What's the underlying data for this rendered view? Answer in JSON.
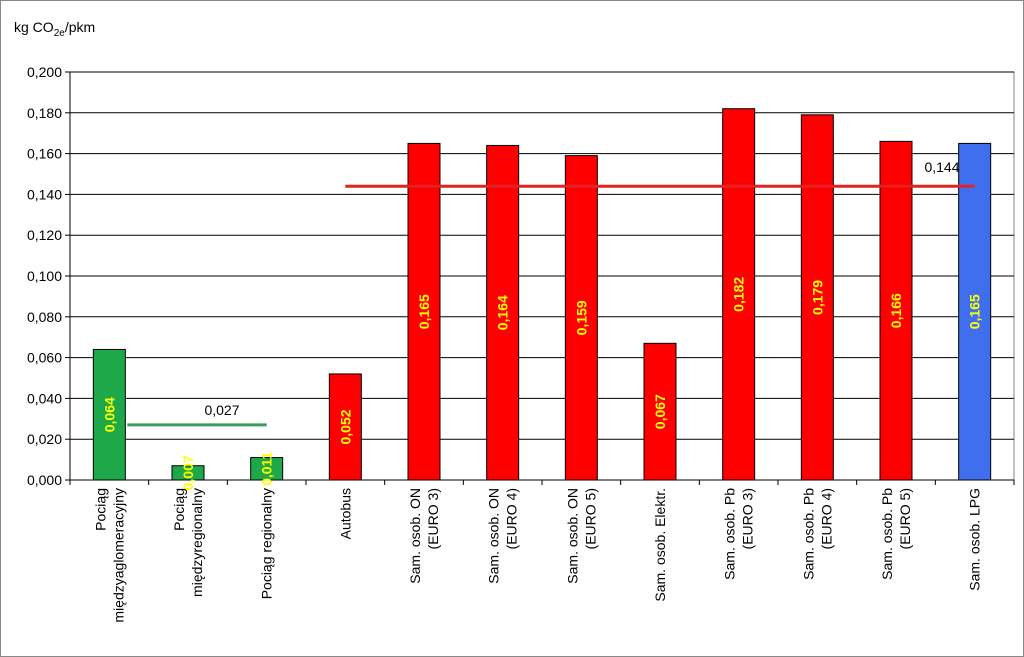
{
  "chart_data": {
    "type": "bar",
    "ylabel": {
      "main": "kg CO",
      "sub": "2e",
      "tail": "/pkm"
    },
    "categories": [
      [
        "Pociąg",
        "międzyaglomeracyjny"
      ],
      [
        "Pociąg",
        "międzyregionalny"
      ],
      [
        "Pociąg regionalny"
      ],
      [
        "Autobus"
      ],
      [
        "Sam. osob. ON",
        "(EURO 3)"
      ],
      [
        "Sam. osob. ON",
        "(EURO 4)"
      ],
      [
        "Sam. osob. ON",
        "(EURO 5)"
      ],
      [
        "Sam. osob. Elektr."
      ],
      [
        "Sam. osob. Pb",
        "(EURO 3)"
      ],
      [
        "Sam. osob. Pb",
        "(EURO 4)"
      ],
      [
        "Sam. osob. Pb",
        "(EURO 5)"
      ],
      [
        "Sam. osob. LPG"
      ]
    ],
    "values": [
      0.064,
      0.007,
      0.011,
      0.052,
      0.165,
      0.164,
      0.159,
      0.067,
      0.182,
      0.179,
      0.166,
      0.165
    ],
    "value_labels": [
      "0,064",
      "0,007",
      "0,011",
      "0,052",
      "0,165",
      "0,164",
      "0,159",
      "0,067",
      "0,182",
      "0,179",
      "0,166",
      "0,165"
    ],
    "colors": [
      "#1ea84a",
      "#1ea84a",
      "#1ea84a",
      "#ff0000",
      "#ff0000",
      "#ff0000",
      "#ff0000",
      "#ff0000",
      "#ff0000",
      "#ff0000",
      "#ff0000",
      "#3f6fef"
    ],
    "reference_lines": [
      {
        "value": 0.027,
        "label": "0,027",
        "color": "#3a9a5a"
      },
      {
        "value": 0.144,
        "label": "0,144",
        "color": "#e52222"
      }
    ],
    "ylim": [
      0,
      0.2
    ],
    "yticks": [
      {
        "value": 0,
        "label": "0,000"
      },
      {
        "value": 0.02,
        "label": "0,020"
      },
      {
        "value": 0.04,
        "label": "0,040"
      },
      {
        "value": 0.06,
        "label": "0,060"
      },
      {
        "value": 0.08,
        "label": "0,080"
      },
      {
        "value": 0.1,
        "label": "0,100"
      },
      {
        "value": 0.12,
        "label": "0,120"
      },
      {
        "value": 0.14,
        "label": "0,140"
      },
      {
        "value": 0.16,
        "label": "0,160"
      },
      {
        "value": 0.18,
        "label": "0,180"
      },
      {
        "value": 0.2,
        "label": "0,200"
      }
    ],
    "grid": true
  }
}
